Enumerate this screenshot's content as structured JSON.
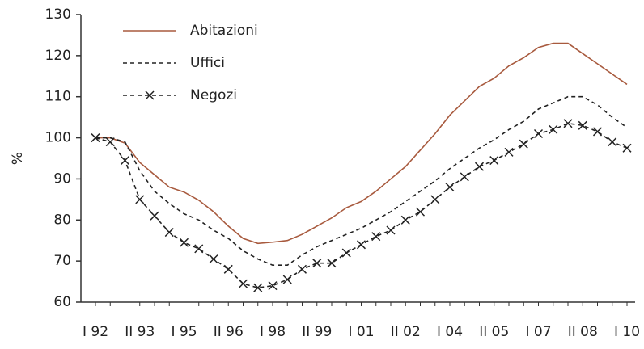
{
  "chart_data": {
    "type": "line",
    "y_label": "%",
    "categories": [
      "I 92",
      null,
      null,
      "II 93",
      null,
      null,
      "I 95",
      null,
      null,
      "II 96",
      null,
      null,
      "I 98",
      null,
      null,
      "II 99",
      null,
      null,
      "I 01",
      null,
      null,
      "II 02",
      null,
      null,
      "I 04",
      null,
      null,
      "II 05",
      null,
      null,
      "I 07",
      null,
      null,
      "II 08",
      null,
      null,
      "I 10"
    ],
    "series": [
      {
        "name": "Abitazioni",
        "color": "#a85a3e",
        "dash": "solid",
        "marker": "none",
        "values": [
          100,
          100,
          98.7,
          94,
          91,
          88,
          86.8,
          84.8,
          82,
          78.5,
          75.5,
          74.3,
          74.6,
          75,
          76.5,
          78.5,
          80.5,
          83,
          84.5,
          87,
          90,
          93,
          97,
          101,
          105.5,
          109,
          112.5,
          114.5,
          117.5,
          119.5,
          122,
          123,
          123,
          120.5,
          118,
          115.5,
          113
        ]
      },
      {
        "name": "Uffici",
        "color": "#222222",
        "dash": "dashed",
        "marker": "none",
        "values": [
          100,
          100,
          99,
          92,
          87,
          84,
          81.5,
          80,
          77.5,
          75.5,
          72.5,
          70.5,
          69,
          69,
          71.5,
          73.5,
          75,
          76.5,
          78,
          80,
          82,
          84.5,
          87,
          89.5,
          92.5,
          95,
          97.5,
          99.5,
          102,
          104,
          107,
          108.5,
          110,
          110,
          108,
          105,
          102.5
        ]
      },
      {
        "name": "Negozi",
        "color": "#222222",
        "dash": "dashed",
        "marker": "x",
        "values": [
          100,
          99,
          94.5,
          85,
          81,
          77,
          74.5,
          73,
          70.5,
          68,
          64.5,
          63.5,
          64,
          65.5,
          68,
          69.5,
          69.5,
          72,
          74,
          76,
          77.5,
          80,
          82,
          85,
          88,
          90.5,
          93,
          94.5,
          96.5,
          98.5,
          101,
          102,
          103.5,
          103,
          101.5,
          99,
          97.5
        ]
      }
    ],
    "ylim": [
      60,
      130
    ],
    "yticks": [
      60,
      70,
      80,
      90,
      100,
      110,
      120,
      130
    ],
    "grid": false
  }
}
